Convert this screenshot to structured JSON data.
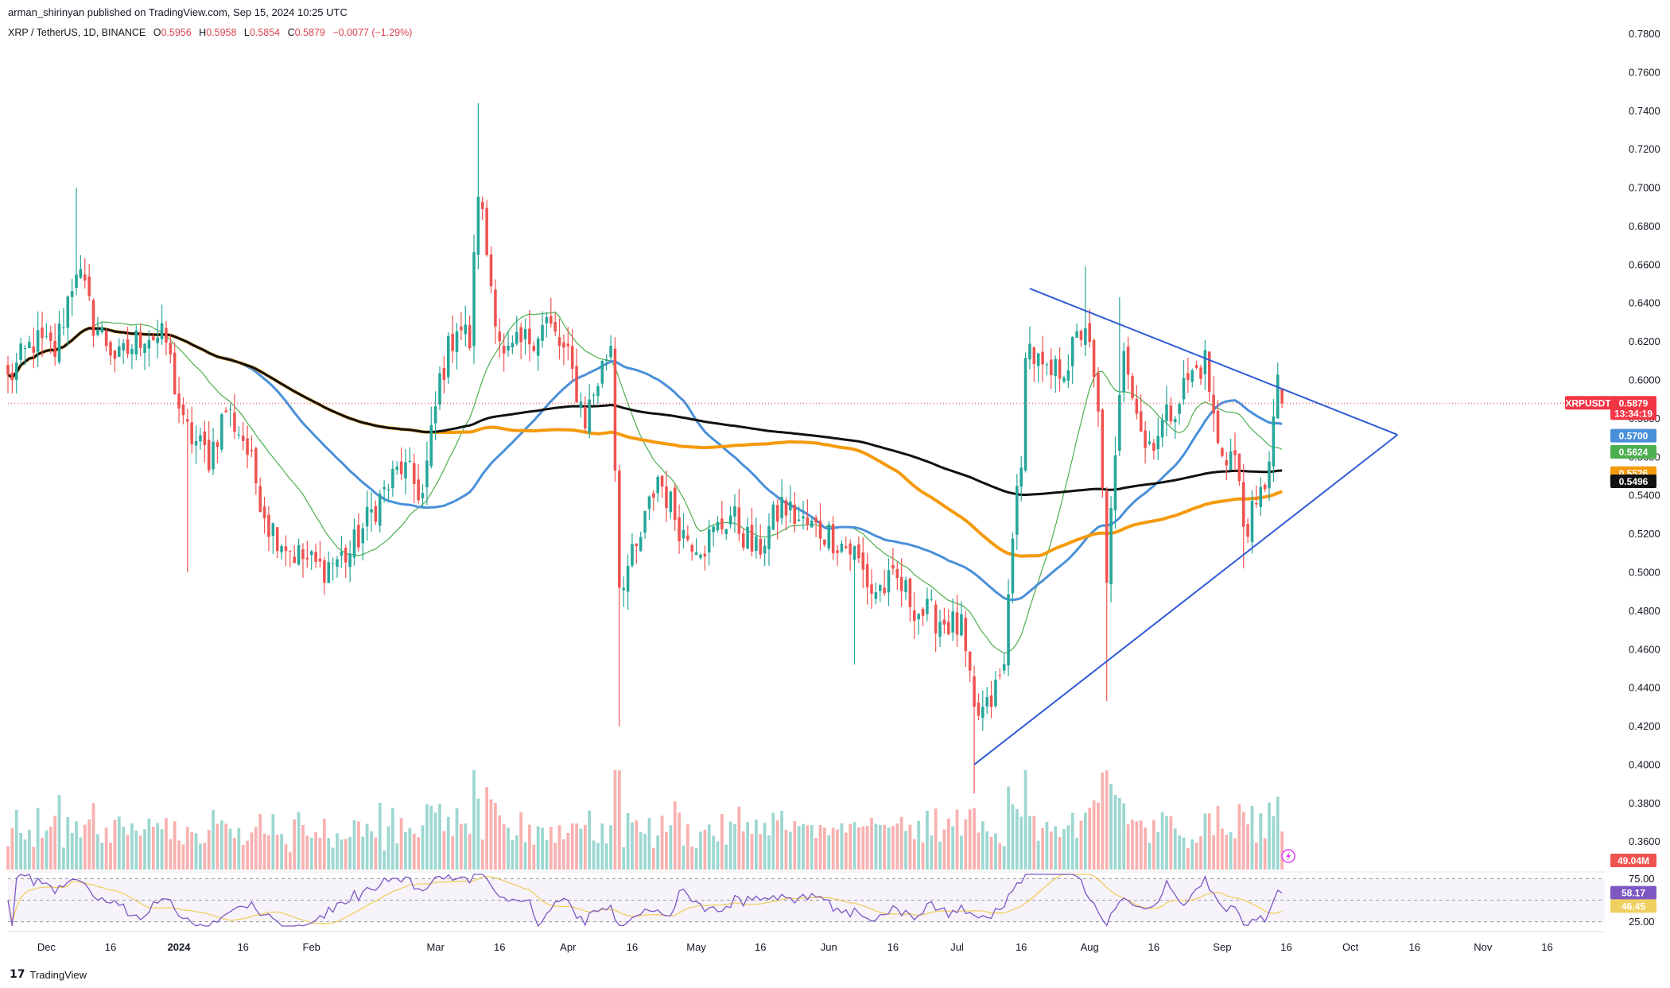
{
  "header": {
    "publisher": "arman_shirinyan published on TradingView.com, Sep 15, 2024 10:25 UTC",
    "symbol": "XRP / TetherUS, 1D, BINANCE",
    "o_label": "O",
    "o_value": "0.5956",
    "h_label": "H",
    "h_value": "0.5958",
    "l_label": "L",
    "l_value": "0.5854",
    "c_label": "C",
    "c_value": "0.5879",
    "change": "−0.0077 (−1.29%)"
  },
  "footer": {
    "brand": "TradingView"
  },
  "colors": {
    "up": "#26a69a",
    "down": "#ef5350",
    "sma_fast": "#4caf50",
    "sma_mid": "#4a90d9",
    "sma_slow": "#f59a0c",
    "sma_long": "#111111",
    "trendline": "#2f5ad6",
    "rsi": "#7e57c2",
    "rsi_ma": "#f0d060",
    "price_tag": "#f23645"
  },
  "chart_data": {
    "type": "candlestick",
    "symbol": "XRPUSDT",
    "timeframe": "1D",
    "y_axis": {
      "ticks": [
        "0.7800",
        "0.7600",
        "0.7400",
        "0.7200",
        "0.7000",
        "0.6800",
        "0.6600",
        "0.6400",
        "0.6200",
        "0.6000",
        "0.5800",
        "0.5600",
        "0.5400",
        "0.5200",
        "0.5000",
        "0.4800",
        "0.4600",
        "0.4400",
        "0.4200",
        "0.4000",
        "0.3800",
        "0.3600"
      ],
      "range": [
        0.345,
        0.786
      ]
    },
    "x_axis": {
      "ticks": [
        {
          "label": "Dec",
          "date": "2023-12-01"
        },
        {
          "label": "16",
          "date": "2023-12-16"
        },
        {
          "label": "2024",
          "date": "2024-01-01",
          "bold": true
        },
        {
          "label": "16",
          "date": "2024-01-16"
        },
        {
          "label": "Feb",
          "date": "2024-02-01"
        },
        {
          "label": "Mar",
          "date": "2024-03-01"
        },
        {
          "label": "16",
          "date": "2024-03-16"
        },
        {
          "label": "Apr",
          "date": "2024-04-01"
        },
        {
          "label": "16",
          "date": "2024-04-16"
        },
        {
          "label": "May",
          "date": "2024-05-01"
        },
        {
          "label": "16",
          "date": "2024-05-16"
        },
        {
          "label": "Jun",
          "date": "2024-06-01"
        },
        {
          "label": "16",
          "date": "2024-06-16"
        },
        {
          "label": "Jul",
          "date": "2024-07-01"
        },
        {
          "label": "16",
          "date": "2024-07-16"
        },
        {
          "label": "Aug",
          "date": "2024-08-01"
        },
        {
          "label": "16",
          "date": "2024-08-16"
        },
        {
          "label": "Sep",
          "date": "2024-09-01"
        },
        {
          "label": "16",
          "date": "2024-09-16"
        },
        {
          "label": "Oct",
          "date": "2024-10-01"
        },
        {
          "label": "16",
          "date": "2024-10-16"
        },
        {
          "label": "Nov",
          "date": "2024-11-01"
        },
        {
          "label": "16",
          "date": "2024-11-16"
        }
      ]
    },
    "price_anchors": [
      [
        "2023-11-22",
        0.6
      ],
      [
        "2023-11-28",
        0.62
      ],
      [
        "2023-12-03",
        0.615
      ],
      [
        "2023-12-08",
        0.66
      ],
      [
        "2023-12-12",
        0.63
      ],
      [
        "2023-12-18",
        0.61
      ],
      [
        "2023-12-24",
        0.625
      ],
      [
        "2023-12-29",
        0.62
      ],
      [
        "2024-01-02",
        0.575
      ],
      [
        "2024-01-08",
        0.56
      ],
      [
        "2024-01-12",
        0.585
      ],
      [
        "2024-01-16",
        0.57
      ],
      [
        "2024-01-22",
        0.525
      ],
      [
        "2024-01-28",
        0.51
      ],
      [
        "2024-02-03",
        0.502
      ],
      [
        "2024-02-10",
        0.51
      ],
      [
        "2024-02-16",
        0.535
      ],
      [
        "2024-02-22",
        0.555
      ],
      [
        "2024-02-27",
        0.54
      ],
      [
        "2024-03-02",
        0.6
      ],
      [
        "2024-03-06",
        0.63
      ],
      [
        "2024-03-09",
        0.62
      ],
      [
        "2024-03-11",
        0.7
      ],
      [
        "2024-03-14",
        0.65
      ],
      [
        "2024-03-17",
        0.61
      ],
      [
        "2024-03-22",
        0.62
      ],
      [
        "2024-03-27",
        0.63
      ],
      [
        "2024-04-01",
        0.61
      ],
      [
        "2024-04-05",
        0.58
      ],
      [
        "2024-04-11",
        0.62
      ],
      [
        "2024-04-13",
        0.495
      ],
      [
        "2024-04-17",
        0.51
      ],
      [
        "2024-04-22",
        0.55
      ],
      [
        "2024-04-28",
        0.52
      ],
      [
        "2024-05-03",
        0.515
      ],
      [
        "2024-05-09",
        0.53
      ],
      [
        "2024-05-15",
        0.51
      ],
      [
        "2024-05-21",
        0.535
      ],
      [
        "2024-05-26",
        0.525
      ],
      [
        "2024-06-01",
        0.52
      ],
      [
        "2024-06-07",
        0.51
      ],
      [
        "2024-06-11",
        0.49
      ],
      [
        "2024-06-17",
        0.495
      ],
      [
        "2024-06-22",
        0.48
      ],
      [
        "2024-06-28",
        0.475
      ],
      [
        "2024-07-02",
        0.47
      ],
      [
        "2024-07-05",
        0.425
      ],
      [
        "2024-07-08",
        0.428
      ],
      [
        "2024-07-12",
        0.45
      ],
      [
        "2024-07-14",
        0.525
      ],
      [
        "2024-07-16",
        0.55
      ],
      [
        "2024-07-17",
        0.62
      ],
      [
        "2024-07-22",
        0.6
      ],
      [
        "2024-07-27",
        0.61
      ],
      [
        "2024-07-31",
        0.63
      ],
      [
        "2024-08-03",
        0.58
      ],
      [
        "2024-08-05",
        0.5
      ],
      [
        "2024-08-07",
        0.555
      ],
      [
        "2024-08-09",
        0.62
      ],
      [
        "2024-08-14",
        0.565
      ],
      [
        "2024-08-19",
        0.58
      ],
      [
        "2024-08-24",
        0.6
      ],
      [
        "2024-08-28",
        0.61
      ],
      [
        "2024-08-31",
        0.565
      ],
      [
        "2024-09-04",
        0.56
      ],
      [
        "2024-09-06",
        0.525
      ],
      [
        "2024-09-09",
        0.53
      ],
      [
        "2024-09-11",
        0.548
      ],
      [
        "2024-09-13",
        0.578
      ],
      [
        "2024-09-14",
        0.595
      ],
      [
        "2024-09-15",
        0.588
      ]
    ],
    "moving_averages": [
      {
        "name": "SMA fast",
        "last": "0.5624",
        "color": "#4caf50"
      },
      {
        "name": "SMA mid",
        "last": "0.5700",
        "color": "#4a90d9"
      },
      {
        "name": "SMA slow",
        "last": "0.5526",
        "color": "#f59a0c"
      },
      {
        "name": "SMA long",
        "last": "0.5496",
        "color": "#111111"
      }
    ],
    "trendlines": [
      {
        "name": "upper",
        "from": [
          "2024-07-18",
          0.6475
        ],
        "to": [
          "2024-10-12",
          0.5715
        ]
      },
      {
        "name": "lower",
        "from": [
          "2024-07-05",
          0.4
        ],
        "to": [
          "2024-10-12",
          0.5715
        ]
      }
    ],
    "current_price": {
      "label": "XRPUSDT",
      "value": "0.5879",
      "countdown": "13:34:19"
    },
    "volume": {
      "last_label": "49.04M"
    },
    "rsi": {
      "levels": [
        "75.00",
        "25.00"
      ],
      "value": "58.17",
      "ma_value": "46.45"
    }
  }
}
